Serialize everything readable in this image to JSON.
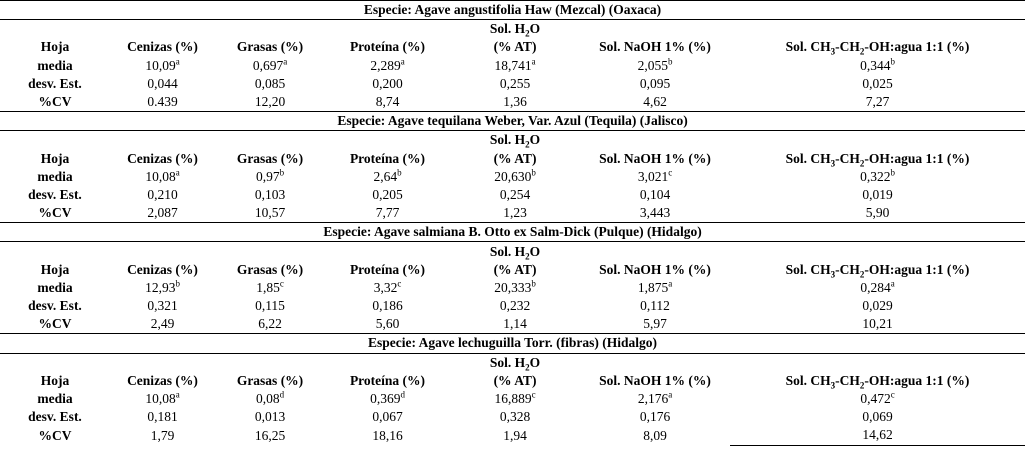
{
  "columns": {
    "hoja": "Hoja",
    "cenizas": "Cenizas (%)",
    "grasas": "Grasas (%)",
    "proteina": "Proteína (%)",
    "h2o_top": "Sol. H",
    "h2o_sub": "2",
    "h2o_end": "O",
    "h2o_bottom": "(% AT)",
    "naoh": "Sol. NaOH 1% (%)",
    "etoh_a": "Sol.  CH",
    "etoh_sub1": "3",
    "etoh_b": "-CH",
    "etoh_sub2": "2",
    "etoh_c": "-OH:agua 1:1 (%)"
  },
  "species": [
    {
      "title": "Especie: Agave angustifolia Haw (Mezcal) (Oaxaca)",
      "rows": [
        {
          "label": "media",
          "cenizas": "10,09",
          "cenizas_sup": "a",
          "grasas": "0,697",
          "grasas_sup": "a",
          "proteina": "2,289",
          "proteina_sup": "a",
          "h2o": "18,741",
          "h2o_sup": "a",
          "naoh": "2,055",
          "naoh_sup": "b",
          "etoh": "0,344",
          "etoh_sup": "b"
        },
        {
          "label": "desv. Est.",
          "cenizas": "0,044",
          "grasas": "0,085",
          "proteina": "0,200",
          "h2o": "0,255",
          "naoh": "0,095",
          "etoh": "0,025"
        },
        {
          "label": "%CV",
          "cenizas": "0.439",
          "grasas": "12,20",
          "proteina": "8,74",
          "h2o": "1,36",
          "naoh": "4,62",
          "etoh": "7,27"
        }
      ]
    },
    {
      "title": "Especie: Agave tequilana Weber, Var. Azul (Tequila) (Jalisco)",
      "rows": [
        {
          "label": "media",
          "cenizas": "10,08",
          "cenizas_sup": "a",
          "grasas": "0,97",
          "grasas_sup": "b",
          "proteina": "2,64",
          "proteina_sup": "b",
          "h2o": "20,630",
          "h2o_sup": "b",
          "naoh": "3,021",
          "naoh_sup": "c",
          "etoh": "0,322",
          "etoh_sup": "b"
        },
        {
          "label": "desv. Est.",
          "cenizas": "0,210",
          "grasas": "0,103",
          "proteina": "0,205",
          "h2o": "0,254",
          "naoh": "0,104",
          "etoh": "0,019"
        },
        {
          "label": "%CV",
          "cenizas": "2,087",
          "grasas": "10,57",
          "proteina": "7,77",
          "h2o": "1,23",
          "naoh": "3,443",
          "etoh": "5,90"
        }
      ]
    },
    {
      "title": "Especie: Agave salmiana B. Otto ex Salm-Dick (Pulque) (Hidalgo)",
      "rows": [
        {
          "label": "media",
          "cenizas": "12,93",
          "cenizas_sup": "b",
          "grasas": "1,85",
          "grasas_sup": "c",
          "proteina": "3,32",
          "proteina_sup": "c",
          "h2o": "20,333",
          "h2o_sup": "b",
          "naoh": "1,875",
          "naoh_sup": "a",
          "etoh": "0,284",
          "etoh_sup": "a"
        },
        {
          "label": "desv. Est.",
          "cenizas": "0,321",
          "grasas": "0,115",
          "proteina": "0,186",
          "h2o": "0,232",
          "naoh": "0,112",
          "etoh": "0,029"
        },
        {
          "label": "%CV",
          "cenizas": "2,49",
          "grasas": "6,22",
          "proteina": "5,60",
          "h2o": "1,14",
          "naoh": "5,97",
          "etoh": "10,21"
        }
      ]
    },
    {
      "title": "Especie: Agave lechuguilla Torr. (fibras) (Hidalgo)",
      "rows": [
        {
          "label": "media",
          "cenizas": "10,08",
          "cenizas_sup": "a",
          "grasas": "0,08",
          "grasas_sup": "d",
          "proteina": "0,369",
          "proteina_sup": "d",
          "h2o": "16,889",
          "h2o_sup": "c",
          "naoh": "2,176",
          "naoh_sup": "a",
          "etoh": "0,472",
          "etoh_sup": "c"
        },
        {
          "label": "desv. Est.",
          "cenizas": "0,181",
          "grasas": "0,013",
          "proteina": "0,067",
          "h2o": "0,328",
          "naoh": "0,176",
          "etoh": "0,069"
        },
        {
          "label": "%CV",
          "cenizas": "1,79",
          "grasas": "16,25",
          "proteina": "18,16",
          "h2o": "1,94",
          "naoh": "8,09",
          "etoh": "14,62"
        }
      ]
    }
  ]
}
